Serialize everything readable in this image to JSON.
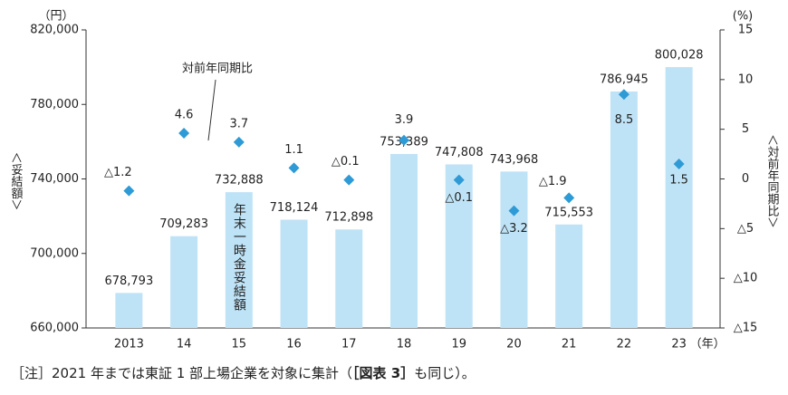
{
  "chart_data": {
    "type": "bar-line",
    "categories": [
      "2013",
      "14",
      "15",
      "16",
      "17",
      "18",
      "19",
      "20",
      "21",
      "22",
      "23"
    ],
    "x_unit": "（年）",
    "y_unit": "（円）",
    "y_label": "＜妥結額＞",
    "y2_unit": "(%)",
    "y2_label": "＜対前年同期比＞",
    "ylim": [
      660000,
      820000
    ],
    "yticks": [
      {
        "value": 660000,
        "label": "660,000"
      },
      {
        "value": 700000,
        "label": "700,000"
      },
      {
        "value": 740000,
        "label": "740,000"
      },
      {
        "value": 780000,
        "label": "780,000"
      },
      {
        "value": 820000,
        "label": "820,000"
      }
    ],
    "y2lim": [
      -15,
      15
    ],
    "y2ticks": [
      {
        "value": -15,
        "label": "△15"
      },
      {
        "value": -10,
        "label": "△10"
      },
      {
        "value": -5,
        "label": "△5"
      },
      0,
      5,
      10,
      15
    ],
    "series": [
      {
        "name": "年末一時金妥結額",
        "type": "bar",
        "color": "#bfe3f6",
        "values": [
          678793,
          709283,
          732888,
          718124,
          712898,
          753389,
          747808,
          743968,
          715553,
          786945,
          800028
        ],
        "value_labels": [
          "678,793",
          "709,283",
          "732,888",
          "718,124",
          "712,898",
          "753,389",
          "747,808",
          "743,968",
          "715,553",
          "786,945",
          "800,028"
        ]
      },
      {
        "name": "対前年同期比",
        "type": "line",
        "axis": "y2",
        "color": "#2e9bd6",
        "values": [
          -1.2,
          4.6,
          3.7,
          1.1,
          -0.1,
          3.9,
          -0.1,
          -3.2,
          -1.9,
          8.5,
          1.5
        ],
        "value_labels": [
          "△1.2",
          "4.6",
          "3.7",
          "1.1",
          "△0.1",
          "3.9",
          "△0.1",
          "△3.2",
          "△1.9",
          "8.5",
          "1.5"
        ]
      }
    ],
    "footnote": [
      "［注］2021 年までは東証 1 部上場企業を対象に集計（",
      "［図表 3］",
      "も同じ）。"
    ]
  }
}
